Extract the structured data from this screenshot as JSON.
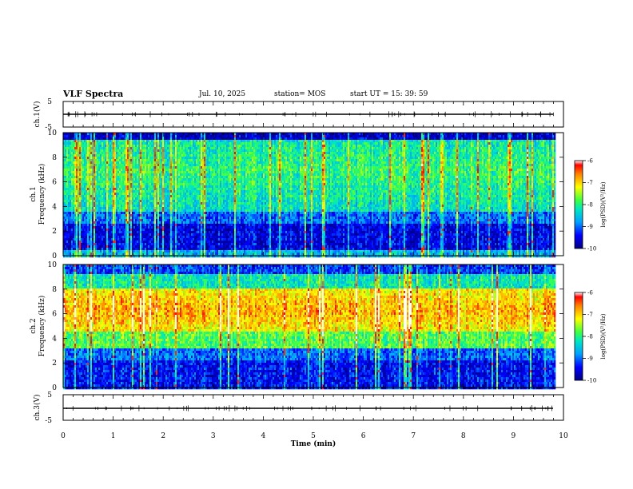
{
  "header": {
    "title": "VLF Spectra",
    "date": "Jul. 10, 2025",
    "station": "station= MOS",
    "start": "start  UT =   15: 39: 59"
  },
  "chart_data": [
    {
      "type": "line",
      "name": "ch.1 waveform",
      "ylabel": "ch.1(V)",
      "ylim": [
        -5,
        5
      ],
      "yticks": [
        5,
        -5
      ],
      "xlim": [
        0,
        10
      ],
      "series": [
        {
          "name": "ch.1",
          "level": 0,
          "end_x": 9.85
        }
      ]
    },
    {
      "type": "heatmap",
      "name": "ch.1 spectrogram",
      "ylabel": "ch.1\nFrequency (kHz)",
      "ylim": [
        0,
        10
      ],
      "yticks": [
        0,
        2,
        4,
        6,
        8,
        10
      ],
      "xlim": [
        0,
        10
      ],
      "data_end_x": 9.85,
      "colorbar": {
        "label": "log(PSD)(V²/Hz)",
        "range": [
          -10,
          -6
        ],
        "ticks": [
          -6,
          -7,
          -8,
          -9,
          -10
        ]
      }
    },
    {
      "type": "heatmap",
      "name": "ch.2 spectrogram",
      "ylabel": "ch.2\nFrequency (kHz)",
      "ylim": [
        0,
        10
      ],
      "yticks": [
        0,
        2,
        4,
        6,
        8,
        10
      ],
      "xlim": [
        0,
        10
      ],
      "data_end_x": 9.85,
      "colorbar": {
        "label": "log(PSD)(V²/Hz)",
        "range": [
          -10,
          -6
        ],
        "ticks": [
          -6,
          -7,
          -8,
          -9,
          -10
        ]
      }
    },
    {
      "type": "line",
      "name": "ch.3 waveform",
      "ylabel": "ch.3(V)",
      "ylim": [
        -5,
        5
      ],
      "yticks": [
        5,
        -5
      ],
      "xlim": [
        0,
        10
      ],
      "xlabel": "Time  (min)",
      "xticks": [
        0,
        1,
        2,
        3,
        4,
        5,
        6,
        7,
        8,
        9,
        10
      ],
      "series": [
        {
          "name": "ch.3",
          "level": 0,
          "end_x": 9.85
        }
      ]
    }
  ]
}
